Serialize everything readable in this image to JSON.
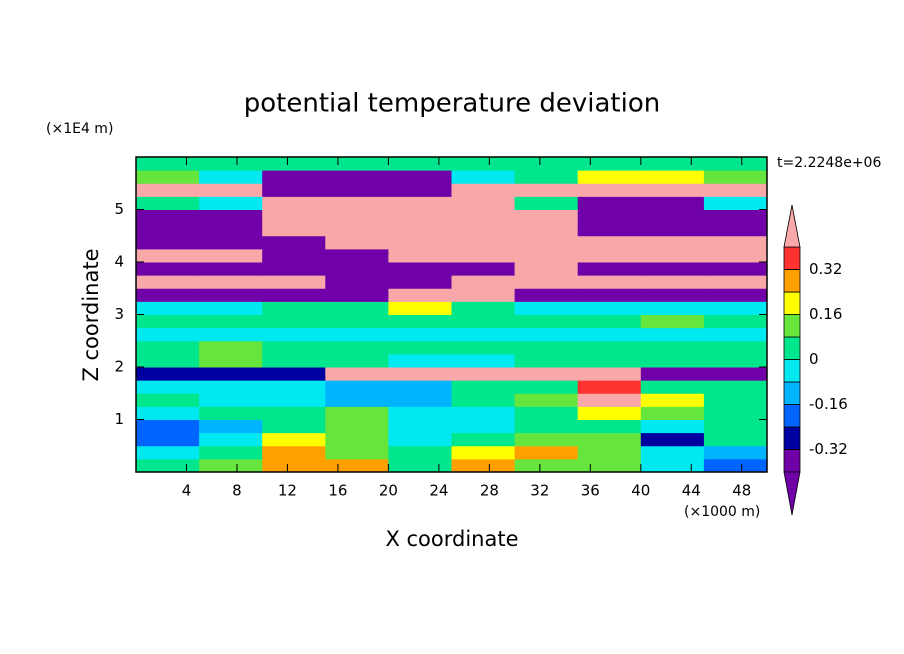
{
  "chart_data": {
    "type": "contour",
    "title": "potential temperature deviation",
    "x_label": "X coordinate",
    "y_label": "Z coordinate",
    "x_unit": "(×1000 m)",
    "y_unit": "(×1E4 m)",
    "time_label": "t=2.2248e+06",
    "xlim": [
      0,
      50
    ],
    "ylim": [
      0,
      6
    ],
    "xticks": [
      4,
      8,
      12,
      16,
      20,
      24,
      28,
      32,
      36,
      40,
      44,
      48
    ],
    "yticks": [
      1,
      2,
      3,
      4,
      5
    ],
    "x": [
      2.5,
      7.5,
      12.5,
      17.5,
      22.5,
      27.5,
      32.5,
      37.5,
      42.5,
      47.5
    ],
    "y": [
      0.125,
      0.375,
      0.625,
      0.875,
      1.125,
      1.375,
      1.625,
      1.875,
      2.125,
      2.375,
      2.625,
      2.875,
      3.125,
      3.375,
      3.625,
      3.875,
      4.125,
      4.375,
      4.625,
      4.875,
      5.125,
      5.375,
      5.625,
      5.875
    ],
    "z": [
      [
        0.04,
        0.1,
        0.28,
        0.28,
        0.04,
        0.28,
        0.1,
        0.1,
        -0.04,
        -0.2
      ],
      [
        -0.04,
        0.04,
        0.28,
        0.1,
        0.04,
        0.2,
        0.28,
        0.1,
        -0.04,
        -0.12
      ],
      [
        -0.2,
        -0.04,
        0.2,
        0.1,
        -0.04,
        0.04,
        0.1,
        0.1,
        -0.28,
        0.04
      ],
      [
        -0.2,
        -0.12,
        0.04,
        0.1,
        -0.04,
        -0.04,
        0.04,
        0.04,
        -0.04,
        0.04
      ],
      [
        -0.04,
        0.04,
        0.04,
        0.1,
        -0.04,
        -0.04,
        0.04,
        0.2,
        0.1,
        0.04
      ],
      [
        0.04,
        -0.04,
        -0.04,
        -0.12,
        -0.12,
        0.04,
        0.1,
        0.5,
        0.2,
        0.04
      ],
      [
        -0.04,
        -0.04,
        -0.04,
        -0.12,
        -0.12,
        0.04,
        0.04,
        0.36,
        0.04,
        0.04
      ],
      [
        -0.28,
        -0.28,
        -0.28,
        0.5,
        0.5,
        0.5,
        0.5,
        0.5,
        -0.5,
        -0.5
      ],
      [
        0.04,
        0.1,
        0.04,
        0.04,
        -0.04,
        -0.04,
        0.04,
        0.04,
        0.04,
        0.04
      ],
      [
        0.04,
        0.1,
        0.04,
        0.04,
        0.04,
        0.04,
        0.04,
        0.04,
        0.04,
        0.04
      ],
      [
        -0.04,
        -0.04,
        -0.04,
        -0.04,
        -0.04,
        -0.04,
        -0.04,
        -0.04,
        -0.04,
        -0.04
      ],
      [
        0.04,
        0.04,
        0.04,
        0.04,
        0.04,
        0.04,
        0.04,
        0.04,
        0.1,
        0.04
      ],
      [
        -0.04,
        -0.04,
        0.04,
        0.04,
        0.2,
        0.04,
        -0.04,
        -0.04,
        -0.04,
        -0.04
      ],
      [
        -0.5,
        -0.5,
        -0.5,
        -0.5,
        0.5,
        0.5,
        -0.5,
        -0.5,
        -0.5,
        -0.5
      ],
      [
        0.5,
        0.5,
        0.5,
        -0.5,
        -0.5,
        0.5,
        0.5,
        0.5,
        0.5,
        0.5
      ],
      [
        -0.5,
        -0.5,
        -0.5,
        -0.5,
        -0.5,
        -0.5,
        0.5,
        -0.5,
        -0.5,
        -0.5
      ],
      [
        0.5,
        0.5,
        -0.5,
        -0.5,
        0.5,
        0.5,
        0.5,
        0.5,
        0.5,
        0.5
      ],
      [
        -0.5,
        -0.5,
        -0.5,
        0.5,
        0.5,
        0.5,
        0.5,
        0.5,
        0.5,
        0.5
      ],
      [
        -0.5,
        -0.5,
        0.5,
        0.5,
        0.5,
        0.5,
        0.5,
        -0.5,
        -0.5,
        -0.5
      ],
      [
        -0.5,
        -0.5,
        0.5,
        0.5,
        0.5,
        0.5,
        0.5,
        -0.5,
        -0.5,
        -0.5
      ],
      [
        0.04,
        -0.04,
        0.5,
        0.5,
        0.5,
        0.5,
        0.04,
        -0.5,
        -0.5,
        -0.04
      ],
      [
        0.5,
        0.5,
        -0.5,
        -0.5,
        -0.5,
        0.5,
        0.5,
        0.5,
        0.5,
        0.5
      ],
      [
        0.1,
        -0.04,
        -0.5,
        -0.5,
        -0.5,
        -0.04,
        0.04,
        0.2,
        0.2,
        0.1
      ],
      [
        0.04,
        0.04,
        0.04,
        0.04,
        0.04,
        0.04,
        0.04,
        0.04,
        0.04,
        0.04
      ]
    ],
    "levels": [
      -0.4,
      -0.32,
      -0.24,
      -0.16,
      -0.08,
      0,
      0.08,
      0.16,
      0.24,
      0.32,
      0.4
    ],
    "colors": [
      "#7000a8",
      "#7000a8",
      "#0000a0",
      "#0064ff",
      "#00b4ff",
      "#00e8f0",
      "#00e68c",
      "#66e63c",
      "#ffff00",
      "#ffa000",
      "#ff3232",
      "#f8a8a8"
    ],
    "colorbar_ticks": [
      -0.32,
      -0.16,
      0,
      0.16,
      0.32
    ]
  }
}
